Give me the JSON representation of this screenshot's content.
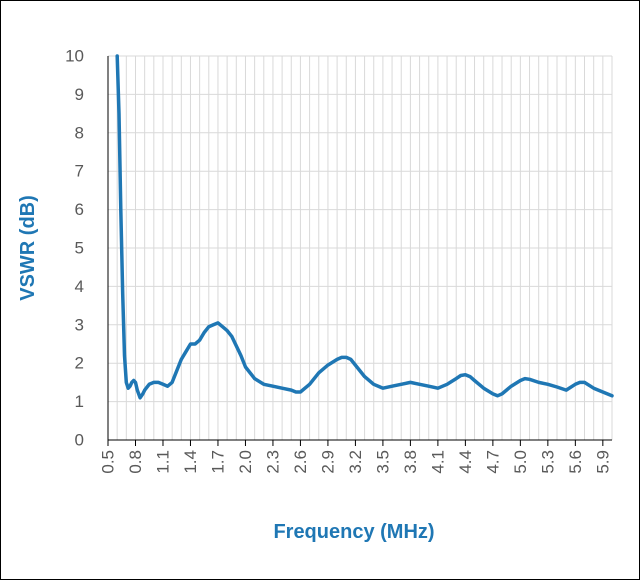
{
  "chart_data": {
    "type": "line",
    "title": "",
    "xlabel": "Frequency (MHz)",
    "ylabel": "VSWR (dB)",
    "xlim": [
      0.5,
      6.0
    ],
    "ylim": [
      0,
      10
    ],
    "grid": true,
    "legend": "none",
    "x_ticks": [
      "0.5",
      "0.8",
      "1.1",
      "1.4",
      "1.7",
      "2.0",
      "2.3",
      "2.6",
      "2.9",
      "3.2",
      "3.5",
      "3.8",
      "4.1",
      "4.4",
      "4.7",
      "5.0",
      "5.3",
      "5.6",
      "5.9"
    ],
    "y_ticks": [
      "0",
      "1",
      "2",
      "3",
      "4",
      "5",
      "6",
      "7",
      "8",
      "9",
      "10"
    ],
    "series": [
      {
        "color": "#1f77b4",
        "x": [
          0.6,
          0.62,
          0.64,
          0.66,
          0.68,
          0.7,
          0.72,
          0.74,
          0.76,
          0.78,
          0.8,
          0.82,
          0.85,
          0.88,
          0.9,
          0.95,
          1.0,
          1.05,
          1.1,
          1.15,
          1.2,
          1.25,
          1.3,
          1.35,
          1.4,
          1.45,
          1.5,
          1.55,
          1.6,
          1.65,
          1.7,
          1.75,
          1.8,
          1.85,
          1.9,
          1.95,
          2.0,
          2.1,
          2.2,
          2.3,
          2.4,
          2.5,
          2.55,
          2.6,
          2.7,
          2.8,
          2.9,
          3.0,
          3.05,
          3.1,
          3.15,
          3.2,
          3.3,
          3.4,
          3.5,
          3.6,
          3.7,
          3.8,
          3.9,
          4.0,
          4.1,
          4.2,
          4.3,
          4.35,
          4.4,
          4.45,
          4.5,
          4.6,
          4.7,
          4.75,
          4.8,
          4.9,
          5.0,
          5.05,
          5.1,
          5.2,
          5.3,
          5.4,
          5.5,
          5.6,
          5.65,
          5.7,
          5.8,
          5.9,
          6.0
        ],
        "y": [
          10.0,
          8.5,
          6.0,
          3.8,
          2.2,
          1.5,
          1.35,
          1.4,
          1.5,
          1.55,
          1.5,
          1.3,
          1.1,
          1.2,
          1.3,
          1.45,
          1.5,
          1.5,
          1.45,
          1.4,
          1.5,
          1.8,
          2.1,
          2.3,
          2.5,
          2.5,
          2.6,
          2.8,
          2.95,
          3.0,
          3.05,
          2.95,
          2.85,
          2.7,
          2.45,
          2.2,
          1.9,
          1.6,
          1.45,
          1.4,
          1.35,
          1.3,
          1.25,
          1.25,
          1.45,
          1.75,
          1.95,
          2.1,
          2.15,
          2.15,
          2.1,
          1.95,
          1.65,
          1.45,
          1.35,
          1.4,
          1.45,
          1.5,
          1.45,
          1.4,
          1.35,
          1.45,
          1.6,
          1.68,
          1.7,
          1.65,
          1.55,
          1.35,
          1.2,
          1.15,
          1.2,
          1.4,
          1.55,
          1.6,
          1.58,
          1.5,
          1.45,
          1.38,
          1.3,
          1.45,
          1.5,
          1.5,
          1.35,
          1.25,
          1.15
        ]
      }
    ]
  }
}
